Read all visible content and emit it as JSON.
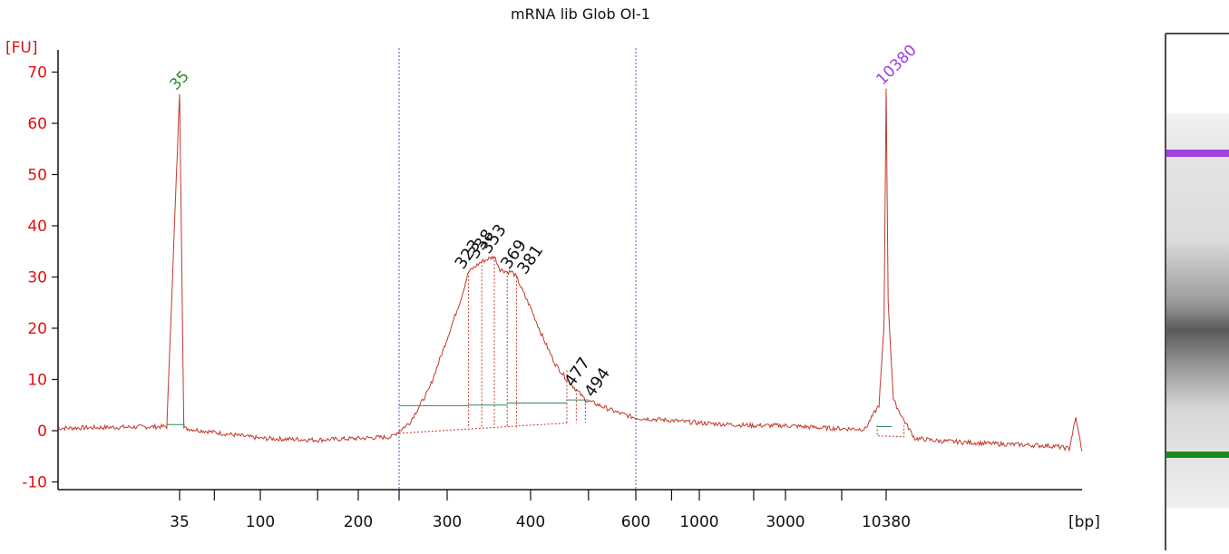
{
  "chart_data": {
    "type": "line",
    "title": "mRNA lib Glob OI-1",
    "ylabel": "[FU]",
    "xlabel": "[bp]",
    "ylim": [
      -12,
      75
    ],
    "yticks": [
      -10,
      0,
      10,
      20,
      30,
      40,
      50,
      60,
      70
    ],
    "x_tick_labels": [
      "35",
      "100",
      "200",
      "300",
      "400",
      "600",
      "1000",
      "3000",
      "10380"
    ],
    "x_scale": "bp ladder (non-linear)",
    "markers": [
      {
        "label": "35",
        "color": "#2a8a2a",
        "height": 66
      },
      {
        "label": "10380",
        "color": "#a040e0",
        "height": 67
      }
    ],
    "region_bounds_bp": [
      250,
      600
    ],
    "peaks": [
      {
        "bp": 323,
        "fu": 31
      },
      {
        "bp": 338,
        "fu": 33
      },
      {
        "bp": 353,
        "fu": 34
      },
      {
        "bp": 369,
        "fu": 31
      },
      {
        "bp": 381,
        "fu": 30
      },
      {
        "bp": 477,
        "fu": 8
      },
      {
        "bp": 494,
        "fu": 6
      }
    ],
    "series": [
      {
        "name": "",
        "color": "#c0392b",
        "x": [
          20,
          33,
          35,
          37,
          60,
          100,
          150,
          200,
          240,
          260,
          280,
          300,
          315,
          323,
          330,
          338,
          345,
          353,
          360,
          369,
          375,
          381,
          390,
          400,
          420,
          440,
          460,
          477,
          494,
          520,
          560,
          600,
          800,
          1000,
          2000,
          3000,
          5000,
          8000,
          9500,
          10100,
          10380,
          10600,
          11200,
          12500,
          14000,
          18000,
          30000,
          60000,
          70000,
          75000,
          80000
        ],
        "y": [
          0.5,
          0.8,
          66,
          0.5,
          -0.5,
          -1.5,
          -1.8,
          -1.5,
          -1.2,
          1.5,
          8,
          18,
          26,
          31,
          32,
          33,
          33.5,
          34,
          31.5,
          31,
          31,
          30,
          27,
          24,
          18,
          13,
          10,
          8,
          6,
          5,
          3.5,
          2.5,
          2,
          1.5,
          1,
          1,
          0.5,
          0.3,
          5,
          20,
          67,
          25,
          6,
          2,
          -1.5,
          -2,
          -2.5,
          -3,
          -3.5,
          2.5,
          -4
        ]
      }
    ],
    "gel_lane": {
      "upper_marker_color": "#a040e0",
      "lower_marker_color": "#1a8a1a"
    }
  }
}
